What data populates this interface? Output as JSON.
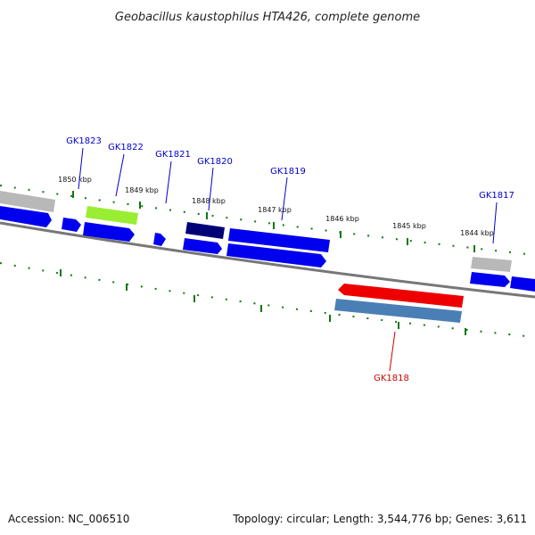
{
  "title": "Geobacillus kaustophilus HTA426, complete genome",
  "footer": {
    "accession": "Accession: NC_006510",
    "topology": "Topology: circular; Length: 3,544,776 bp; Genes: 3,611"
  },
  "ticks": [
    "1850 kbp",
    "1849 kbp",
    "1848 kbp",
    "1847 kbp",
    "1846 kbp",
    "1845 kbp",
    "1844 kbp"
  ],
  "genes": [
    {
      "label": "GK1823",
      "color": "#0000cc"
    },
    {
      "label": "GK1822",
      "color": "#0000cc"
    },
    {
      "label": "GK1821",
      "color": "#0000cc"
    },
    {
      "label": "GK1820",
      "color": "#0000cc"
    },
    {
      "label": "GK1819",
      "color": "#0000cc"
    },
    {
      "label": "GK1817",
      "color": "#0000cc"
    },
    {
      "label": "GK1818",
      "color": "#cc0000"
    }
  ],
  "colors": {
    "cds": "#0000ee",
    "trna_grey": "#b8b8b8",
    "highlight_green": "#99ee33",
    "dark_navy": "#000077",
    "highlight_red": "#ee0000",
    "steel_blue": "#4a7fb5",
    "backbone": "#777777",
    "tick": "#117711"
  }
}
